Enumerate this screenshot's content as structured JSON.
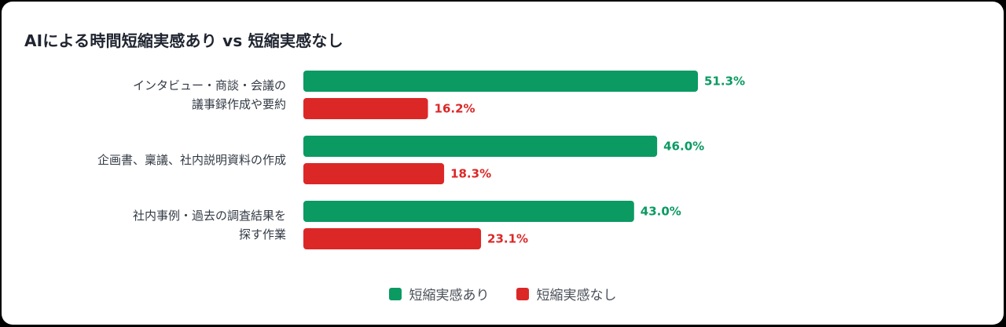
{
  "chart_data": {
    "type": "bar",
    "orientation": "horizontal",
    "title": "AIによる時間短縮実感あり vs 短縮実感なし",
    "categories": [
      [
        "インタビュー・商談・会議の",
        "議事録作成や要約"
      ],
      [
        "企画書、稟議、社内説明資料の作成"
      ],
      [
        "社内事例・過去の調査結果を",
        "探す作業"
      ]
    ],
    "series": [
      {
        "name": "短縮実感あり",
        "color": "#0a9a62",
        "values": [
          51.3,
          46.0,
          43.0
        ]
      },
      {
        "name": "短縮実感なし",
        "color": "#dc2727",
        "values": [
          16.2,
          18.3,
          23.1
        ]
      }
    ],
    "value_format": "percent_1dp",
    "legend_position": "bottom-center",
    "grid": false,
    "xlim": [
      0,
      51.3
    ]
  }
}
